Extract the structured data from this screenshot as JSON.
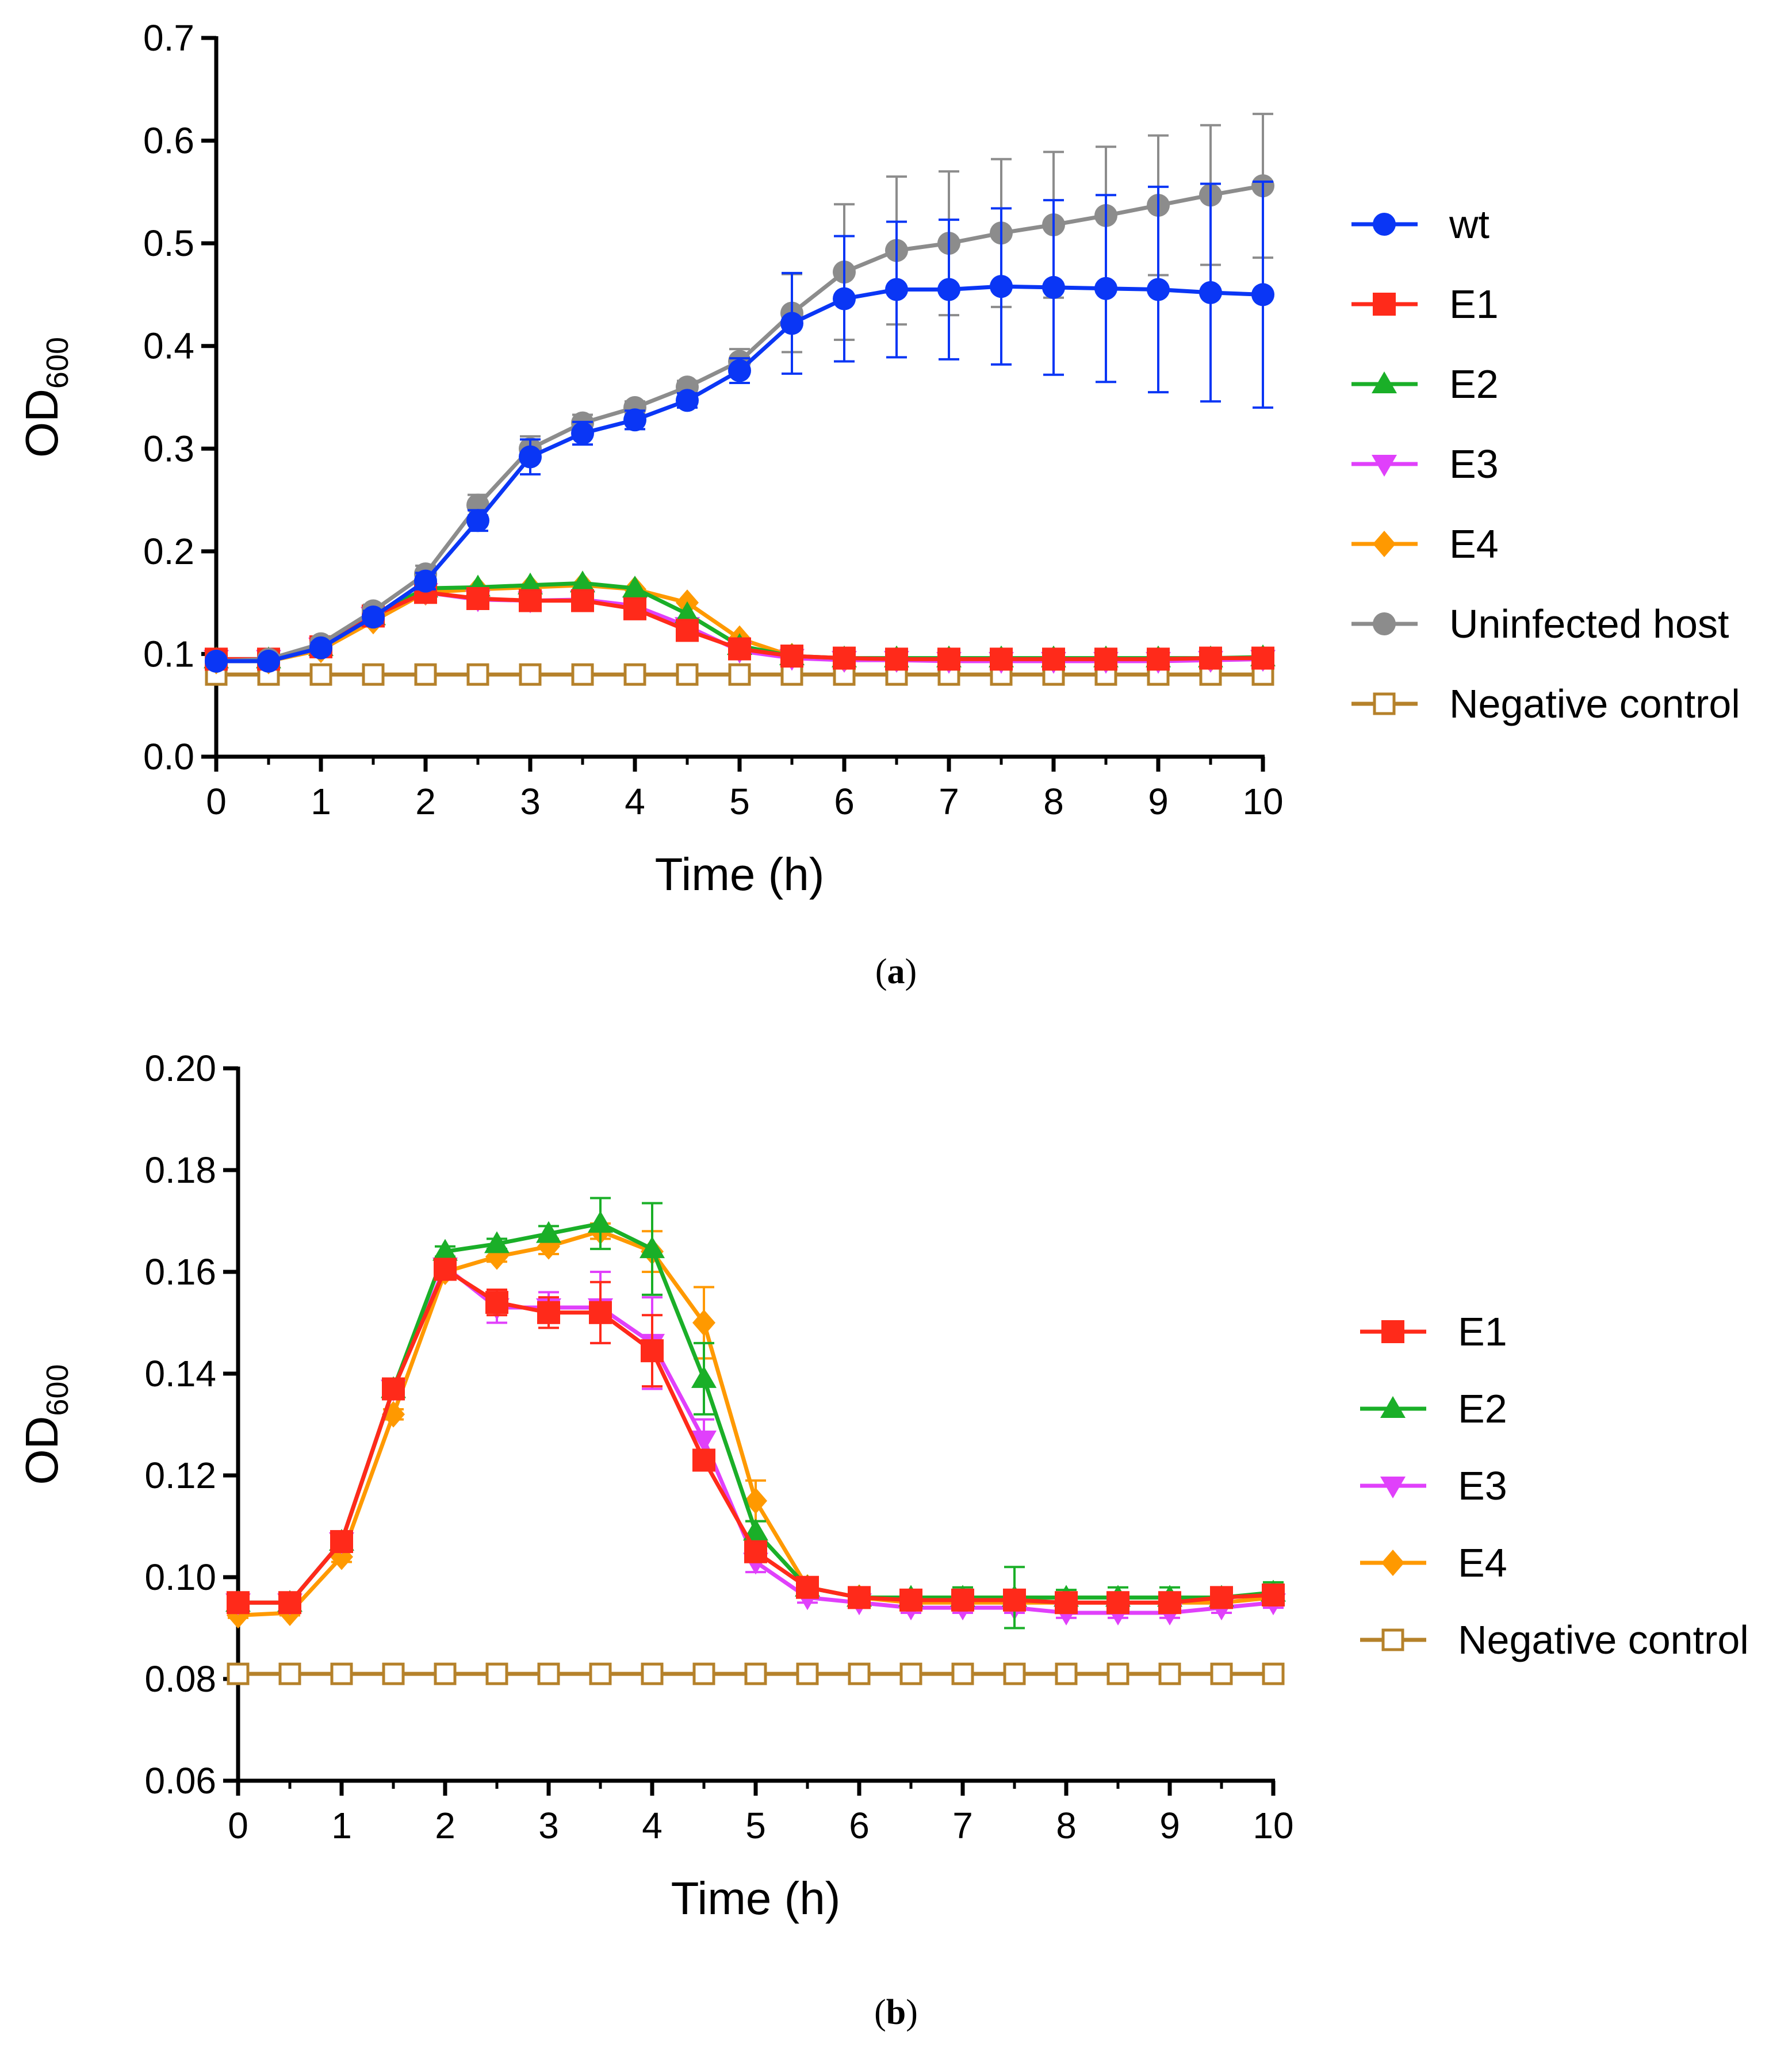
{
  "captions": [
    "a",
    "b"
  ],
  "chart_data": [
    {
      "type": "line",
      "panel": "a",
      "title": "",
      "xlabel": "Time (h)",
      "ylabel": "OD",
      "ylabel_subscript": "600",
      "xlim": [
        0,
        10
      ],
      "ylim": [
        0,
        0.7
      ],
      "xticks": [
        0,
        1,
        2,
        3,
        4,
        5,
        6,
        7,
        8,
        9,
        10
      ],
      "yticks": [
        0.0,
        0.1,
        0.2,
        0.3,
        0.4,
        0.5,
        0.6,
        0.7
      ],
      "ytick_labels": [
        "0.0",
        "0.1",
        "0.2",
        "0.3",
        "0.4",
        "0.5",
        "0.6",
        "0.7"
      ],
      "legend_position": "right",
      "x": [
        0,
        0.5,
        1,
        1.5,
        2,
        2.5,
        3,
        3.5,
        4,
        4.5,
        5,
        5.5,
        6,
        6.5,
        7,
        7.5,
        8,
        8.5,
        9,
        9.5,
        10
      ],
      "series": [
        {
          "name": "Negative control",
          "color": "#b5812a",
          "marker": "square-open",
          "values": [
            0.08,
            0.08,
            0.08,
            0.08,
            0.08,
            0.08,
            0.08,
            0.08,
            0.08,
            0.08,
            0.08,
            0.08,
            0.08,
            0.08,
            0.08,
            0.08,
            0.08,
            0.08,
            0.08,
            0.08,
            0.08
          ]
        },
        {
          "name": "E4",
          "color": "#ff9900",
          "marker": "diamond",
          "values": [
            0.093,
            0.093,
            0.104,
            0.132,
            0.16,
            0.163,
            0.165,
            0.167,
            0.163,
            0.15,
            0.115,
            0.098,
            0.095,
            0.095,
            0.095,
            0.095,
            0.095,
            0.095,
            0.095,
            0.095,
            0.096
          ]
        },
        {
          "name": "E3",
          "color": "#e040fb",
          "marker": "triangle-down",
          "values": [
            0.095,
            0.095,
            0.107,
            0.137,
            0.16,
            0.153,
            0.152,
            0.153,
            0.147,
            0.127,
            0.103,
            0.096,
            0.094,
            0.094,
            0.093,
            0.093,
            0.093,
            0.093,
            0.093,
            0.094,
            0.095
          ]
        },
        {
          "name": "E2",
          "color": "#1aaf28",
          "marker": "triangle",
          "values": [
            0.095,
            0.095,
            0.107,
            0.137,
            0.164,
            0.165,
            0.167,
            0.169,
            0.164,
            0.139,
            0.108,
            0.098,
            0.096,
            0.096,
            0.096,
            0.096,
            0.096,
            0.096,
            0.096,
            0.096,
            0.097
          ]
        },
        {
          "name": "E1",
          "color": "#ff2a1a",
          "marker": "square",
          "values": [
            0.095,
            0.095,
            0.107,
            0.137,
            0.16,
            0.154,
            0.152,
            0.152,
            0.144,
            0.123,
            0.105,
            0.098,
            0.096,
            0.095,
            0.095,
            0.095,
            0.095,
            0.095,
            0.095,
            0.096,
            0.096
          ]
        },
        {
          "name": "Uninfected host",
          "color": "#8c8c8c",
          "marker": "circle",
          "values": [
            0.093,
            0.095,
            0.11,
            0.142,
            0.178,
            0.245,
            0.3,
            0.325,
            0.34,
            0.36,
            0.385,
            0.432,
            0.472,
            0.493,
            0.5,
            0.51,
            0.518,
            0.527,
            0.537,
            0.547,
            0.556
          ],
          "errors": [
            0.004,
            0.004,
            0.005,
            0.006,
            0.008,
            0.01,
            0.012,
            0.008,
            0.006,
            0.006,
            0.012,
            0.038,
            0.066,
            0.072,
            0.07,
            0.072,
            0.071,
            0.067,
            0.068,
            0.068,
            0.07
          ]
        },
        {
          "name": "wt",
          "color": "#0a36f5",
          "marker": "circle",
          "values": [
            0.093,
            0.093,
            0.106,
            0.136,
            0.171,
            0.23,
            0.292,
            0.315,
            0.328,
            0.347,
            0.376,
            0.422,
            0.446,
            0.455,
            0.455,
            0.458,
            0.457,
            0.456,
            0.455,
            0.452,
            0.45
          ],
          "errors": [
            0.004,
            0.004,
            0.005,
            0.006,
            0.008,
            0.01,
            0.017,
            0.011,
            0.009,
            0.007,
            0.012,
            0.049,
            0.061,
            0.066,
            0.068,
            0.076,
            0.085,
            0.091,
            0.1,
            0.106,
            0.11
          ]
        }
      ],
      "legend_order": [
        "wt",
        "E1",
        "E2",
        "E3",
        "E4",
        "Uninfected host",
        "Negative control"
      ]
    },
    {
      "type": "line",
      "panel": "b",
      "title": "",
      "xlabel": "Time (h)",
      "ylabel": "OD",
      "ylabel_subscript": "600",
      "xlim": [
        0,
        10
      ],
      "ylim": [
        0.06,
        0.2
      ],
      "xticks": [
        0,
        1,
        2,
        3,
        4,
        5,
        6,
        7,
        8,
        9,
        10
      ],
      "yticks": [
        0.06,
        0.08,
        0.1,
        0.12,
        0.14,
        0.16,
        0.18,
        0.2
      ],
      "ytick_labels": [
        "0.06",
        "0.08",
        "0.10",
        "0.12",
        "0.14",
        "0.16",
        "0.18",
        "0.20"
      ],
      "legend_position": "right",
      "x": [
        0,
        0.5,
        1,
        1.5,
        2,
        2.5,
        3,
        3.5,
        4,
        4.5,
        5,
        5.5,
        6,
        6.5,
        7,
        7.5,
        8,
        8.5,
        9,
        9.5,
        10
      ],
      "series": [
        {
          "name": "Negative control",
          "color": "#b5812a",
          "marker": "square-open",
          "values": [
            0.081,
            0.081,
            0.081,
            0.081,
            0.081,
            0.081,
            0.081,
            0.081,
            0.081,
            0.081,
            0.081,
            0.081,
            0.081,
            0.081,
            0.081,
            0.081,
            0.081,
            0.081,
            0.081,
            0.081,
            0.081
          ]
        },
        {
          "name": "E4",
          "color": "#ff9900",
          "marker": "diamond",
          "values": [
            0.0925,
            0.093,
            0.104,
            0.132,
            0.16,
            0.163,
            0.165,
            0.168,
            0.164,
            0.15,
            0.115,
            0.098,
            0.096,
            0.095,
            0.095,
            0.095,
            0.095,
            0.095,
            0.095,
            0.095,
            0.096
          ],
          "errors": [
            0.0005,
            0.0005,
            0.001,
            0.001,
            0.001,
            0.001,
            0.0015,
            0.0015,
            0.004,
            0.007,
            0.004,
            0.001,
            0.001,
            0.001,
            0.001,
            0.001,
            0.001,
            0.001,
            0.001,
            0.001,
            0.001
          ]
        },
        {
          "name": "E3",
          "color": "#e040fb",
          "marker": "triangle-down",
          "values": [
            0.095,
            0.095,
            0.107,
            0.137,
            0.161,
            0.153,
            0.153,
            0.153,
            0.146,
            0.127,
            0.103,
            0.096,
            0.095,
            0.094,
            0.094,
            0.094,
            0.093,
            0.093,
            0.093,
            0.094,
            0.095
          ],
          "errors": [
            0.0005,
            0.0005,
            0.001,
            0.001,
            0.001,
            0.003,
            0.003,
            0.007,
            0.009,
            0.004,
            0.002,
            0.001,
            0.001,
            0.001,
            0.001,
            0.001,
            0.001,
            0.001,
            0.001,
            0.001,
            0.001
          ]
        },
        {
          "name": "E2",
          "color": "#1aaf28",
          "marker": "triangle",
          "values": [
            0.095,
            0.095,
            0.107,
            0.137,
            0.164,
            0.1655,
            0.1675,
            0.1695,
            0.1645,
            0.139,
            0.109,
            0.098,
            0.096,
            0.096,
            0.096,
            0.096,
            0.096,
            0.096,
            0.096,
            0.096,
            0.097
          ],
          "errors": [
            0.0005,
            0.0005,
            0.001,
            0.001,
            0.001,
            0.001,
            0.0015,
            0.005,
            0.009,
            0.007,
            0.002,
            0.001,
            0.001,
            0.001,
            0.002,
            0.006,
            0.0015,
            0.002,
            0.002,
            0.002,
            0.002
          ]
        },
        {
          "name": "E1",
          "color": "#ff2a1a",
          "marker": "square",
          "values": [
            0.095,
            0.095,
            0.107,
            0.137,
            0.1605,
            0.154,
            0.152,
            0.152,
            0.1445,
            0.123,
            0.105,
            0.098,
            0.096,
            0.0955,
            0.0955,
            0.0955,
            0.095,
            0.095,
            0.095,
            0.096,
            0.0965
          ],
          "errors": [
            0.0005,
            0.0005,
            0.001,
            0.001,
            0.001,
            0.0025,
            0.003,
            0.006,
            0.007,
            0.002,
            0.001,
            0.001,
            0.001,
            0.001,
            0.001,
            0.001,
            0.001,
            0.001,
            0.001,
            0.001,
            0.001
          ]
        }
      ],
      "legend_order": [
        "E1",
        "E2",
        "E3",
        "E4",
        "Negative control"
      ]
    }
  ]
}
